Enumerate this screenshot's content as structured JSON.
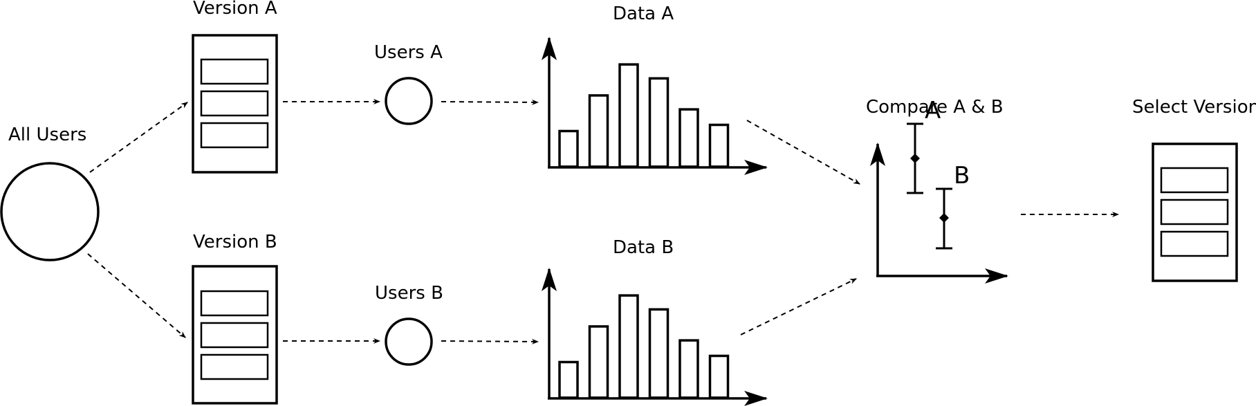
{
  "labels": {
    "all_users": "All Users",
    "version_a": "Version A",
    "version_b": "Version B",
    "users_a": "Users A",
    "users_b": "Users B",
    "data_a": "Data A",
    "data_b": "Data B",
    "compare": "Compare A & B",
    "select_version": "Select Version",
    "point_a": "A",
    "point_b": "B"
  },
  "chart_data": [
    {
      "type": "bar",
      "values": [
        2.3,
        4.6,
        6.6,
        5.7,
        3.7,
        2.7
      ]
    },
    {
      "type": "bar",
      "values": [
        2.3,
        4.6,
        6.6,
        5.7,
        3.7,
        2.7
      ]
    },
    {
      "type": "scatter",
      "points": [
        {
          "label": "A",
          "value": 0.85,
          "low": 0.6,
          "high": 1.1
        },
        {
          "label": "B",
          "value": 0.42,
          "low": 0.2,
          "high": 0.63
        }
      ]
    }
  ]
}
